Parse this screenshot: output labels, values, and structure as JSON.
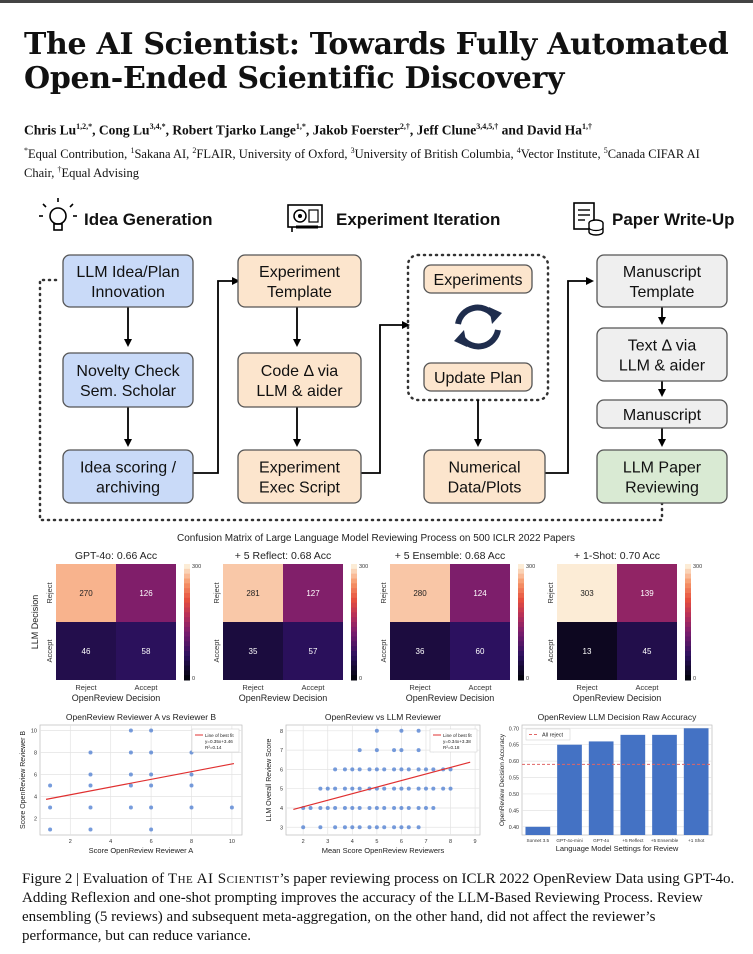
{
  "paper": {
    "title_line1": "The AI Scientist: Towards Fully Automated",
    "title_line2": "Open-Ended Scientific Discovery",
    "authors": [
      {
        "name": "Chris Lu",
        "sup": "1,2,*"
      },
      {
        "name": "Cong Lu",
        "sup": "3,4,*"
      },
      {
        "name": "Robert Tjarko Lange",
        "sup": "1,*"
      },
      {
        "name": "Jakob Foerster",
        "sup": "2,†"
      },
      {
        "name": "Jeff Clune",
        "sup": "3,4,5,†"
      },
      {
        "name": "David Ha",
        "sup": "1,†"
      }
    ],
    "author_separator": ", ",
    "author_and": " and ",
    "affiliations": [
      {
        "sup": "*",
        "text": "Equal Contribution, "
      },
      {
        "sup": "1",
        "text": "Sakana AI, "
      },
      {
        "sup": "2",
        "text": "FLAIR, University of Oxford, "
      },
      {
        "sup": "3",
        "text": "University of British Columbia, "
      },
      {
        "sup": "4",
        "text": "Vector Institute, "
      },
      {
        "sup": "5",
        "text": "Canada CIFAR AI Chair, "
      },
      {
        "sup": "†",
        "text": "Equal Advising"
      }
    ]
  },
  "pipeline": {
    "sections": [
      {
        "label": "Idea Generation",
        "icon": "lightbulb-icon"
      },
      {
        "label": "Experiment Iteration",
        "icon": "gpu-card-icon"
      },
      {
        "label": "Paper Write-Up",
        "icon": "document-database-icon"
      }
    ],
    "boxes": {
      "idea_plan": [
        "LLM Idea/Plan",
        "Innovation"
      ],
      "novelty": [
        "Novelty Check",
        "Sem. Scholar"
      ],
      "scoring": [
        "Idea scoring /",
        "archiving"
      ],
      "exp_template": [
        "Experiment",
        "Template"
      ],
      "code_delta": [
        "Code Δ via",
        "LLM & aider"
      ],
      "exec_script": [
        "Experiment",
        "Exec Script"
      ],
      "experiments": [
        "Experiments"
      ],
      "update_plan": [
        "Update Plan"
      ],
      "numerical": [
        "Numerical",
        "Data/Plots"
      ],
      "manuscript_template": [
        "Manuscript",
        "Template"
      ],
      "text_delta": [
        "Text Δ via",
        "LLM & aider"
      ],
      "manuscript": [
        "Manuscript"
      ],
      "reviewing": [
        "LLM Paper",
        "Reviewing"
      ]
    },
    "colors": {
      "blue": "#c9daf8",
      "orange": "#fce5cd",
      "gray": "#efefef",
      "green": "#d9ead3",
      "border": "#555555"
    }
  },
  "chart_data": [
    {
      "type": "heatmap",
      "title": "Confusion Matrix of Large Language Model Reviewing Process on 500 ICLR 2022 Papers",
      "ylabel": "LLM Decision",
      "xlabel": "OpenReview Decision",
      "row_labels": [
        "Reject",
        "Accept"
      ],
      "col_labels": [
        "Reject",
        "Accept"
      ],
      "colorbar_range": [
        0,
        300
      ],
      "colorbar_ticks": [
        "300",
        "0"
      ],
      "panels": [
        {
          "title": "GPT-4o: 0.66 Acc",
          "values": [
            [
              270,
              126
            ],
            [
              46,
              58
            ]
          ]
        },
        {
          "title": "+ 5 Reflect: 0.68 Acc",
          "values": [
            [
              281,
              127
            ],
            [
              35,
              57
            ]
          ]
        },
        {
          "title": "+ 5 Ensemble: 0.68 Acc",
          "values": [
            [
              280,
              124
            ],
            [
              36,
              60
            ]
          ]
        },
        {
          "title": "+ 1-Shot: 0.70 Acc",
          "values": [
            [
              303,
              139
            ],
            [
              13,
              45
            ]
          ]
        }
      ]
    },
    {
      "type": "scatter",
      "title": "OpenReview Reviewer A vs Reviewer B",
      "xlabel": "Score OpenReview Reviewer A",
      "ylabel": "Score OpenReview Reviewer B",
      "xlim": [
        0.5,
        10.5
      ],
      "ylim": [
        0.5,
        10.5
      ],
      "xticks": [
        2,
        4,
        6,
        8,
        10
      ],
      "yticks": [
        2,
        4,
        6,
        8,
        10
      ],
      "grid": true,
      "legend": {
        "placement": "top-right",
        "entries": [
          "Line of best fit",
          "y=0.35x+3.46",
          "R²=0.14"
        ]
      },
      "fit": {
        "slope": 0.35,
        "intercept": 3.46
      },
      "points": [
        [
          1,
          1
        ],
        [
          1,
          3
        ],
        [
          1,
          5
        ],
        [
          3,
          1
        ],
        [
          3,
          3
        ],
        [
          3,
          5
        ],
        [
          3,
          6
        ],
        [
          3,
          8
        ],
        [
          5,
          3
        ],
        [
          5,
          5
        ],
        [
          5,
          6
        ],
        [
          5,
          8
        ],
        [
          5,
          10
        ],
        [
          6,
          1
        ],
        [
          6,
          3
        ],
        [
          6,
          5
        ],
        [
          6,
          6
        ],
        [
          6,
          8
        ],
        [
          6,
          10
        ],
        [
          8,
          3
        ],
        [
          8,
          5
        ],
        [
          8,
          6
        ],
        [
          8,
          8
        ],
        [
          10,
          3
        ]
      ]
    },
    {
      "type": "scatter",
      "title": "OpenReview vs LLM Reviewer",
      "xlabel": "Mean Score OpenReview Reviewers",
      "ylabel": "LLM Overall Review Score",
      "xlim": [
        1.3,
        9.2
      ],
      "ylim": [
        2.6,
        8.3
      ],
      "xticks": [
        2,
        3,
        4,
        5,
        6,
        7,
        8,
        9
      ],
      "yticks": [
        3,
        4,
        5,
        6,
        7,
        8
      ],
      "grid": true,
      "legend": {
        "placement": "top-right",
        "entries": [
          "Line of best fit",
          "y=0.34x+3.38",
          "R²=0.18"
        ]
      },
      "fit": {
        "slope": 0.34,
        "intercept": 3.38
      },
      "rows": [
        {
          "y": 3,
          "xs": [
            2.0,
            2.7,
            3.3,
            3.7,
            4.0,
            4.3,
            4.7,
            5.0,
            5.3,
            5.7,
            6.0,
            6.3,
            6.7
          ]
        },
        {
          "y": 4,
          "xs": [
            2.0,
            2.3,
            2.7,
            3.0,
            3.3,
            3.7,
            4.0,
            4.3,
            4.7,
            5.0,
            5.3,
            5.7,
            6.0,
            6.3,
            6.7,
            7.0,
            7.3
          ]
        },
        {
          "y": 5,
          "xs": [
            2.7,
            3.0,
            3.3,
            3.7,
            4.0,
            4.3,
            4.7,
            5.0,
            5.3,
            5.7,
            6.0,
            6.3,
            6.7,
            7.0,
            7.3,
            7.7,
            8.0
          ]
        },
        {
          "y": 6,
          "xs": [
            3.3,
            3.7,
            4.0,
            4.3,
            4.7,
            5.0,
            5.3,
            5.7,
            6.0,
            6.3,
            6.7,
            7.0,
            7.3,
            7.7,
            8.0
          ]
        },
        {
          "y": 7,
          "xs": [
            4.3,
            5.0,
            5.7,
            6.0,
            6.7,
            7.3
          ]
        },
        {
          "y": 8,
          "xs": [
            5.0,
            6.0,
            6.7
          ]
        }
      ]
    },
    {
      "type": "bar",
      "title": "OpenReview LLM Decision Raw Accuracy",
      "xlabel": "Language Model Settings for Review",
      "ylabel": "OpenReview Decision Accuracy",
      "categories": [
        "Sonnet 3.5",
        "GPT-4o-mini",
        "GPT-4o",
        "+5 Reflect",
        "+5 Ensemble",
        "+1 Shot"
      ],
      "values": [
        0.4,
        0.65,
        0.66,
        0.68,
        0.68,
        0.7
      ],
      "ylim": [
        0.375,
        0.71
      ],
      "yticks": [
        "0.40",
        "0.45",
        "0.50",
        "0.55",
        "0.60",
        "0.65",
        "0.70"
      ],
      "reference_line": {
        "name": "All reject",
        "value": 0.59
      },
      "legend": {
        "placement": "top-left"
      },
      "grid": true,
      "bar_color": "#4472c4",
      "ref_color": "#e06666"
    }
  ],
  "figure_caption": {
    "label": "Figure 2 | Evaluation of ",
    "system_name": "The AI Scientist",
    "text": "’s paper reviewing process on ICLR 2022 OpenReview Data using GPT-4o. Adding Reflexion and one-shot prompting improves the accuracy of the LLM-Based Reviewing Process. Review ensembling (5 reviews) and subsequent meta-aggregation, on the other hand, did not affect the reviewer’s performance, but can reduce variance."
  }
}
